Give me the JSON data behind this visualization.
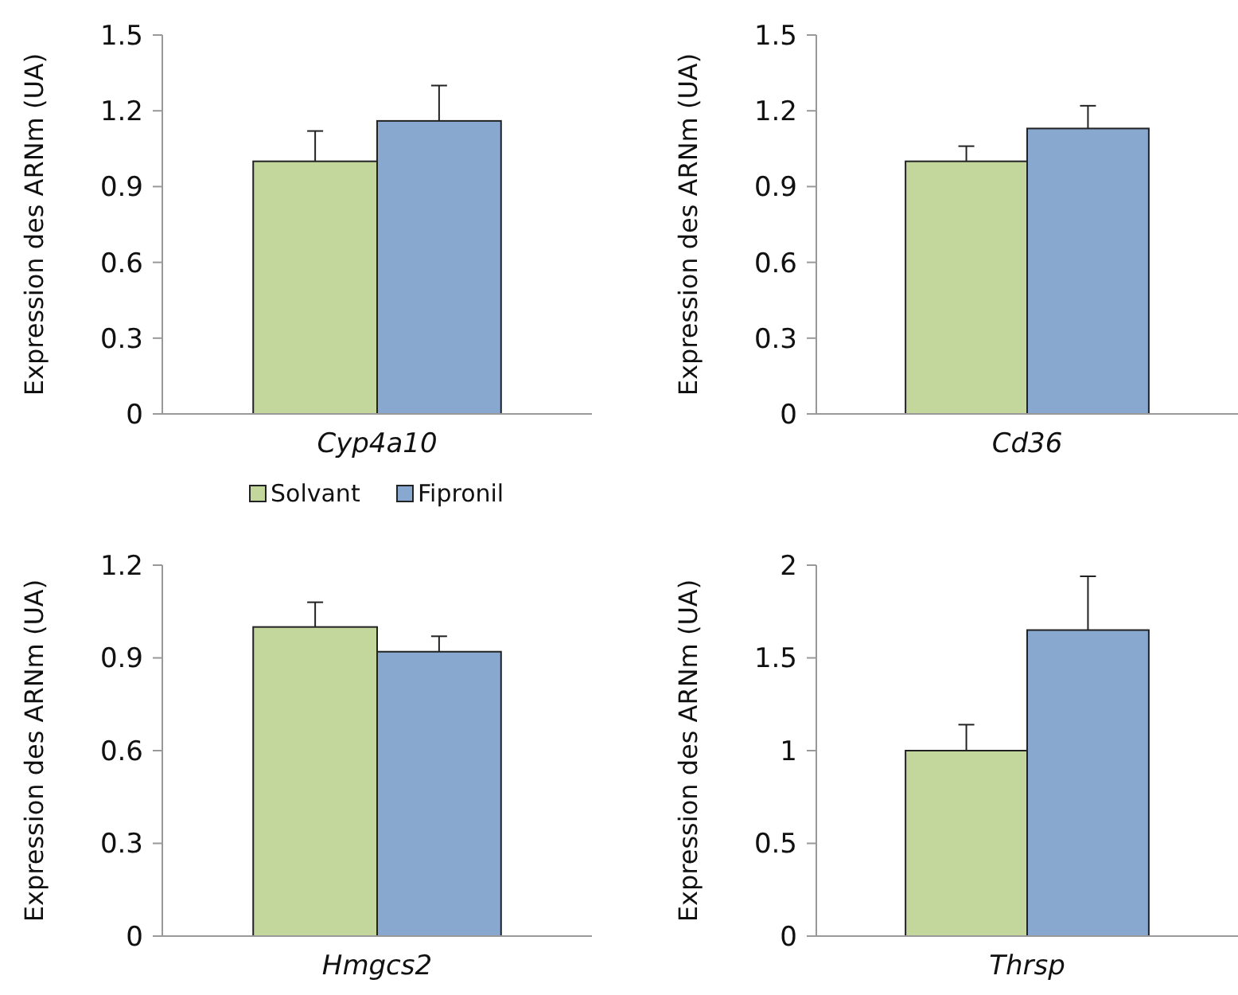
{
  "chart_data": [
    {
      "type": "bar",
      "ylabel": "Expression des ARNm (UA)",
      "categories": [
        "Cyp4a10"
      ],
      "ylim": [
        0,
        1.5
      ],
      "yticks": [
        0,
        0.3,
        0.6,
        0.9,
        1.2,
        1.5
      ],
      "series": [
        {
          "color": "#c3d69b",
          "values": [
            1.0
          ],
          "errors": [
            [
              1.0,
              1.12
            ]
          ]
        },
        {
          "color": "#88a8d0",
          "values": [
            1.16
          ],
          "errors": [
            [
              1.16,
              1.3
            ]
          ]
        }
      ]
    },
    {
      "type": "bar",
      "ylabel": "Expression des ARNm (UA)",
      "categories": [
        "Cd36"
      ],
      "ylim": [
        0,
        1.5
      ],
      "yticks": [
        0,
        0.3,
        0.6,
        0.9,
        1.2,
        1.5
      ],
      "series": [
        {
          "color": "#c3d69b",
          "values": [
            1.0
          ],
          "errors": [
            [
              1.0,
              1.06
            ]
          ]
        },
        {
          "color": "#88a8d0",
          "values": [
            1.13
          ],
          "errors": [
            [
              1.13,
              1.22
            ]
          ]
        }
      ]
    },
    {
      "type": "bar",
      "ylabel": "Expression des ARNm (UA)",
      "categories": [
        "Hmgcs2"
      ],
      "ylim": [
        0,
        1.2
      ],
      "yticks": [
        0,
        0.3,
        0.6,
        0.9,
        1.2
      ],
      "legend": "top",
      "series": [
        {
          "name": "Solvant",
          "color": "#c3d69b",
          "values": [
            1.0
          ],
          "errors": [
            [
              1.0,
              1.08
            ]
          ]
        },
        {
          "name": "Fipronil",
          "color": "#88a8d0",
          "values": [
            0.92
          ],
          "errors": [
            [
              0.92,
              0.97
            ]
          ]
        }
      ]
    },
    {
      "type": "bar",
      "ylabel": "Expression des ARNm (UA)",
      "categories": [
        "Thrsp"
      ],
      "ylim": [
        0,
        2
      ],
      "yticks": [
        0,
        0.5,
        1,
        1.5,
        2
      ],
      "series": [
        {
          "color": "#c3d69b",
          "values": [
            1.0
          ],
          "errors": [
            [
              1.0,
              1.14
            ]
          ]
        },
        {
          "color": "#88a8d0",
          "values": [
            1.65
          ],
          "errors": [
            [
              1.65,
              1.94
            ]
          ]
        }
      ]
    }
  ]
}
